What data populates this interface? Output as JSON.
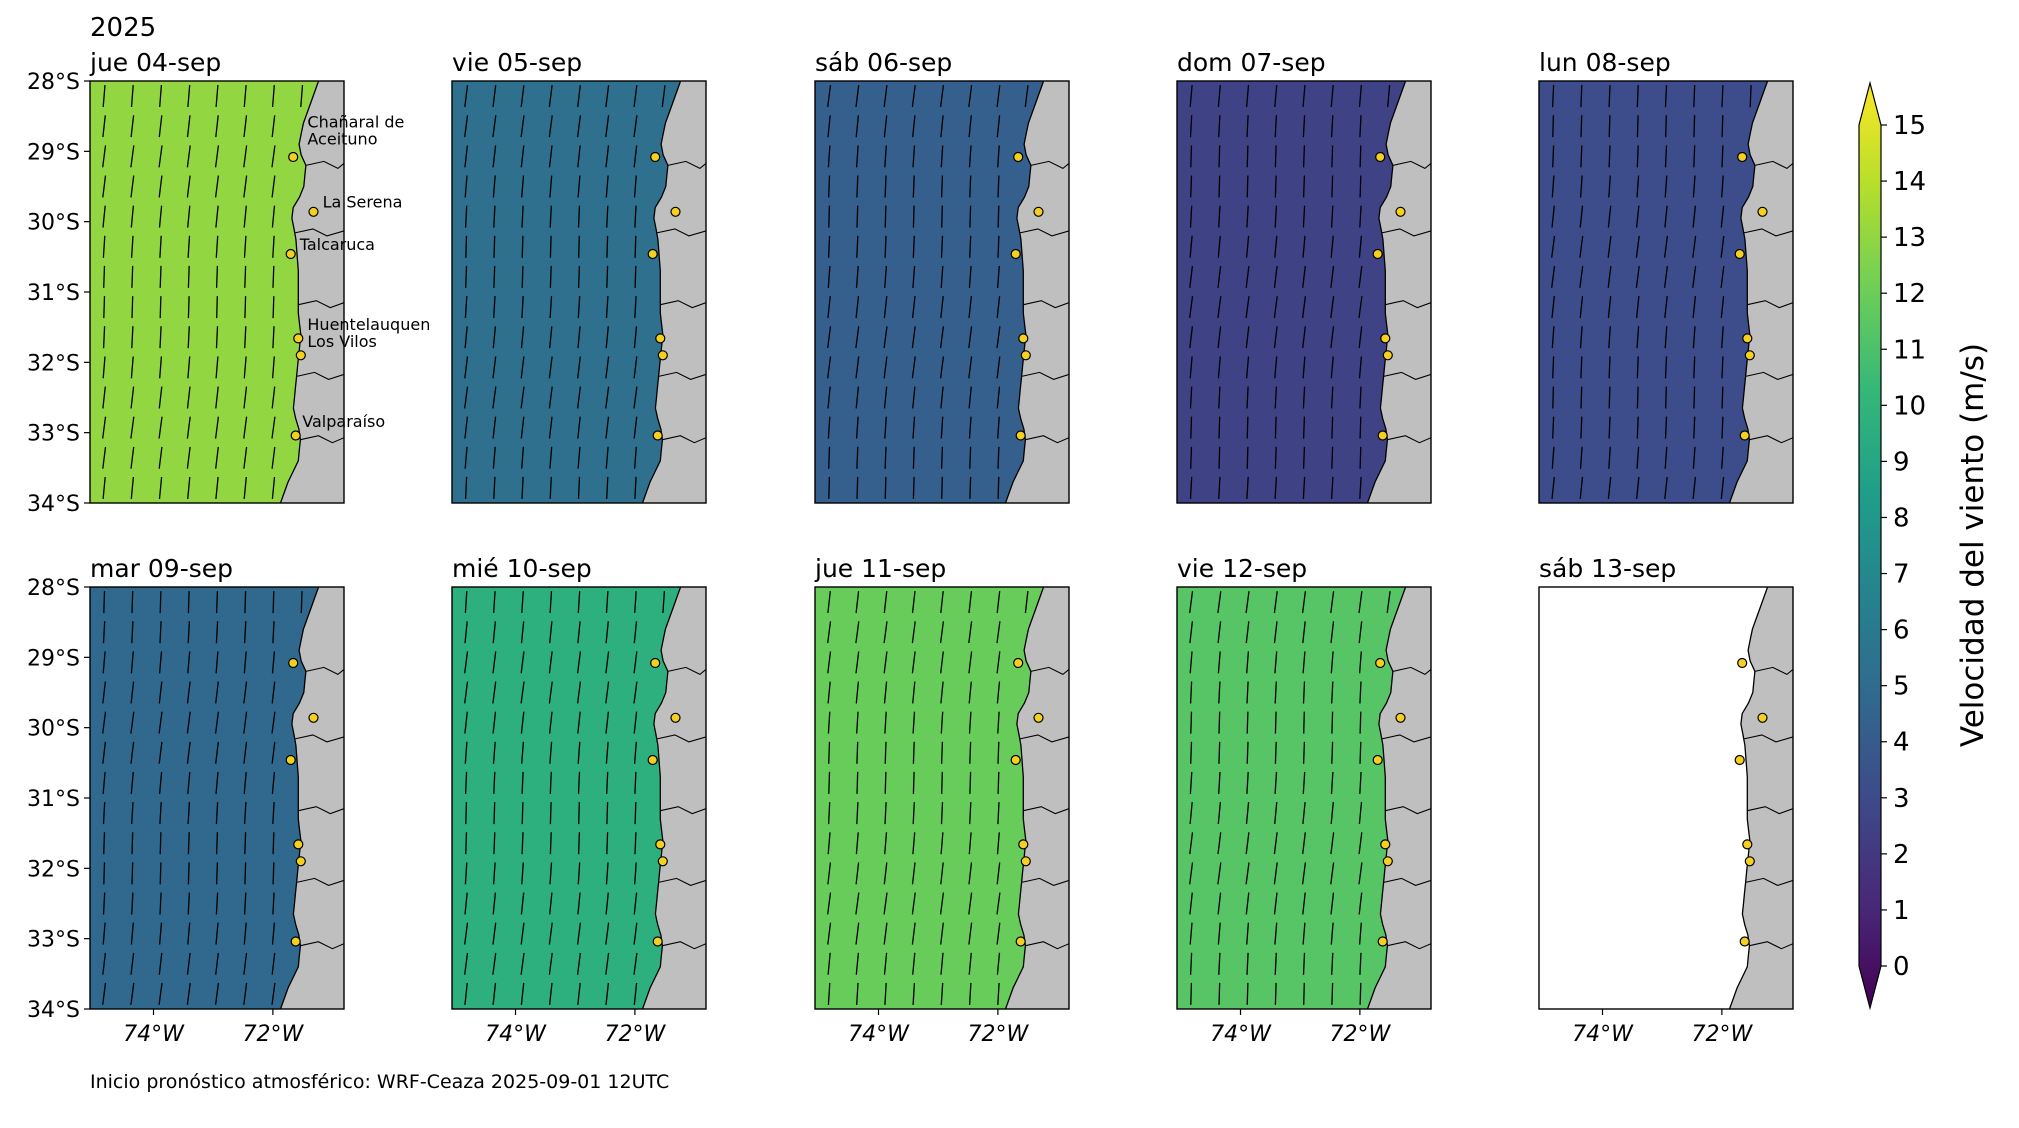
{
  "figure": {
    "year": "2025",
    "footer": "Inicio pronóstico atmosférico: WRF-Ceaza 2025-09-01 12UTC"
  },
  "axes": {
    "lat_labels": [
      "28°S",
      "29°S",
      "30°S",
      "31°S",
      "32°S",
      "33°S",
      "34°S"
    ],
    "lon_labels": [
      "74°W",
      "72°W"
    ]
  },
  "panels": [
    {
      "title": "jue 04-sep",
      "mean_speed": 12.5,
      "has_data": true
    },
    {
      "title": "vie 05-sep",
      "mean_speed": 5.5,
      "has_data": true
    },
    {
      "title": "sáb 06-sep",
      "mean_speed": 4.5,
      "has_data": true
    },
    {
      "title": "dom 07-sep",
      "mean_speed": 3.0,
      "has_data": true
    },
    {
      "title": "lun 08-sep",
      "mean_speed": 3.5,
      "has_data": true
    },
    {
      "title": "mar 09-sep",
      "mean_speed": 5.0,
      "has_data": true
    },
    {
      "title": "mié 10-sep",
      "mean_speed": 9.5,
      "has_data": true
    },
    {
      "title": "jue 11-sep",
      "mean_speed": 11.5,
      "has_data": true
    },
    {
      "title": "vie 12-sep",
      "mean_speed": 11.0,
      "has_data": true
    },
    {
      "title": "sáb 13-sep",
      "mean_speed": 0,
      "has_data": false
    }
  ],
  "places": [
    "Chañaral de\nAceituno",
    "La Serena",
    "Talcaruca",
    "Huentelauquen",
    "Los Vilos",
    "Valparaíso"
  ],
  "colorbar": {
    "label": "Velocidad del viento (m/s)",
    "ticks": [
      "0",
      "1",
      "2",
      "3",
      "4",
      "5",
      "6",
      "7",
      "8",
      "9",
      "10",
      "11",
      "12",
      "13",
      "14",
      "15"
    ],
    "colormap": [
      "#440154",
      "#482878",
      "#3e4989",
      "#31688e",
      "#26828e",
      "#1f9e89",
      "#35b779",
      "#6ece58",
      "#b5de2b",
      "#fde725"
    ]
  }
}
